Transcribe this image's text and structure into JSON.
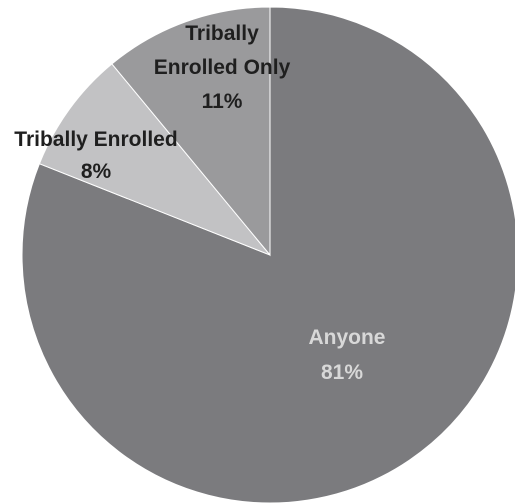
{
  "chart_data": {
    "type": "pie",
    "title": "",
    "start": "12 o'clock, clockwise",
    "slices": [
      {
        "name": "Anyone",
        "value": 81,
        "value_label": "81%",
        "color": "#7b7b7e",
        "label_color": "#d8d8d8"
      },
      {
        "name": "Tribally Enrolled",
        "value": 8,
        "value_label": "8%",
        "color": "#c2c2c4",
        "label_color": "#1f1f1f"
      },
      {
        "name": "Tribally Enrolled Only",
        "value": 11,
        "value_label": "11%",
        "color": "#9a9a9c",
        "label_color": "#1f1f1f",
        "name_lines": [
          "Tribally",
          "Enrolled Only"
        ]
      }
    ]
  }
}
